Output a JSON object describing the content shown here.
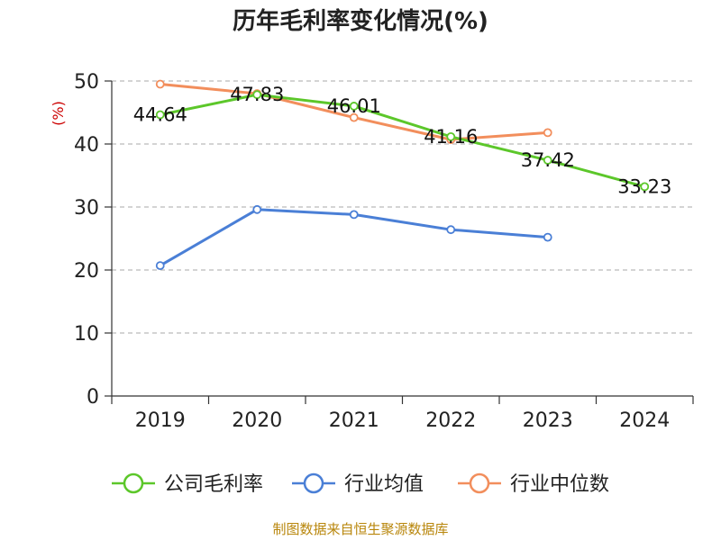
{
  "chart_data": {
    "type": "line",
    "title": "历年毛利率变化情况(%)",
    "unit_label": "(%)",
    "categories": [
      "2019",
      "2020",
      "2021",
      "2022",
      "2023",
      "2024"
    ],
    "y_ticks": [
      "0",
      "10",
      "20",
      "30",
      "40",
      "50"
    ],
    "ylim": [
      0,
      50
    ],
    "grid": true,
    "series": [
      {
        "name": "公司毛利率",
        "color": "#5cc72a",
        "values": [
          44.64,
          47.83,
          46.01,
          41.16,
          37.42,
          33.23
        ],
        "labels": [
          "44.64",
          "47.83",
          "46.01",
          "41.16",
          "37.42",
          "33.23"
        ]
      },
      {
        "name": "行业均值",
        "color": "#4a7fd6",
        "values": [
          20.7,
          29.6,
          28.8,
          26.4,
          25.2,
          null
        ]
      },
      {
        "name": "行业中位数",
        "color": "#f28e5c",
        "values": [
          49.5,
          48.0,
          44.2,
          40.7,
          41.8,
          null
        ]
      }
    ],
    "legend_position": "bottom"
  },
  "source": "制图数据来自恒生聚源数据库"
}
